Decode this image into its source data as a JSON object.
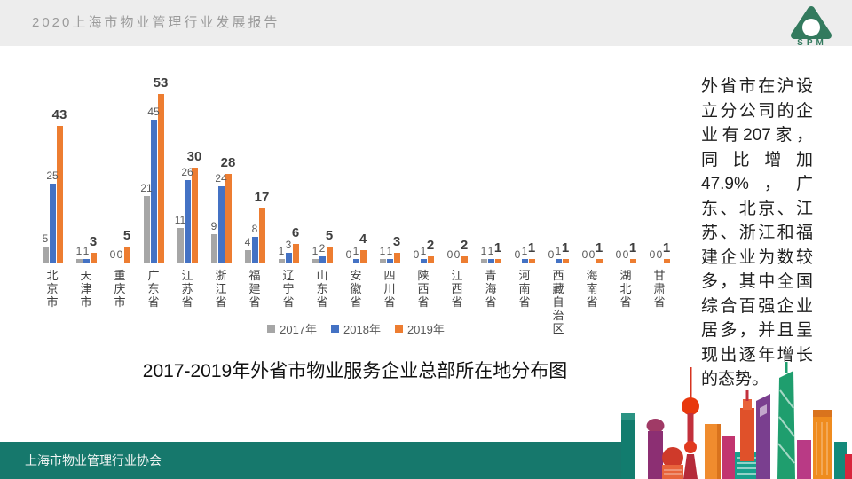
{
  "header": {
    "title": "2020上海市物业管理行业发展报告",
    "logo_text": "SPM",
    "logo_color": "#337a5e"
  },
  "side_text": "外省市在沪设立分公司的企业有207家，同比增加47.9%，广东、北京、江苏、浙江和福建企业为数较多，其中全国综合百强企业居多，并且呈现出逐年增长的态势。",
  "chart_data": {
    "type": "bar",
    "title": "2017-2019年外省市物业服务企业总部所在地分布图",
    "categories": [
      "北京市",
      "天津市",
      "重庆市",
      "广东省",
      "江苏省",
      "浙江省",
      "福建省",
      "辽宁省",
      "山东省",
      "安徽省",
      "四川省",
      "陕西省",
      "江西省",
      "青海省",
      "河南省",
      "西藏自治区",
      "海南省",
      "湖北省",
      "甘肃省"
    ],
    "series": [
      {
        "name": "2017年",
        "color": "#a6a6a6",
        "values": [
          5,
          1,
          0,
          21,
          11,
          9,
          4,
          1,
          1,
          0,
          1,
          0,
          0,
          1,
          0,
          0,
          0,
          0,
          0
        ]
      },
      {
        "name": "2018年",
        "color": "#4472c4",
        "values": [
          25,
          1,
          0,
          45,
          26,
          24,
          8,
          3,
          2,
          1,
          1,
          1,
          0,
          1,
          1,
          1,
          0,
          0,
          0
        ]
      },
      {
        "name": "2019年",
        "color": "#ed7d31",
        "values": [
          43,
          3,
          5,
          53,
          30,
          28,
          17,
          6,
          5,
          4,
          3,
          2,
          2,
          1,
          1,
          1,
          1,
          1,
          1
        ]
      }
    ],
    "ylim": [
      0,
      53
    ],
    "grid": false,
    "legend_position": "bottom",
    "value_labels_shown": true
  },
  "footer": {
    "text": "上海市物业管理行业协会",
    "bar_color": "#16786c"
  }
}
